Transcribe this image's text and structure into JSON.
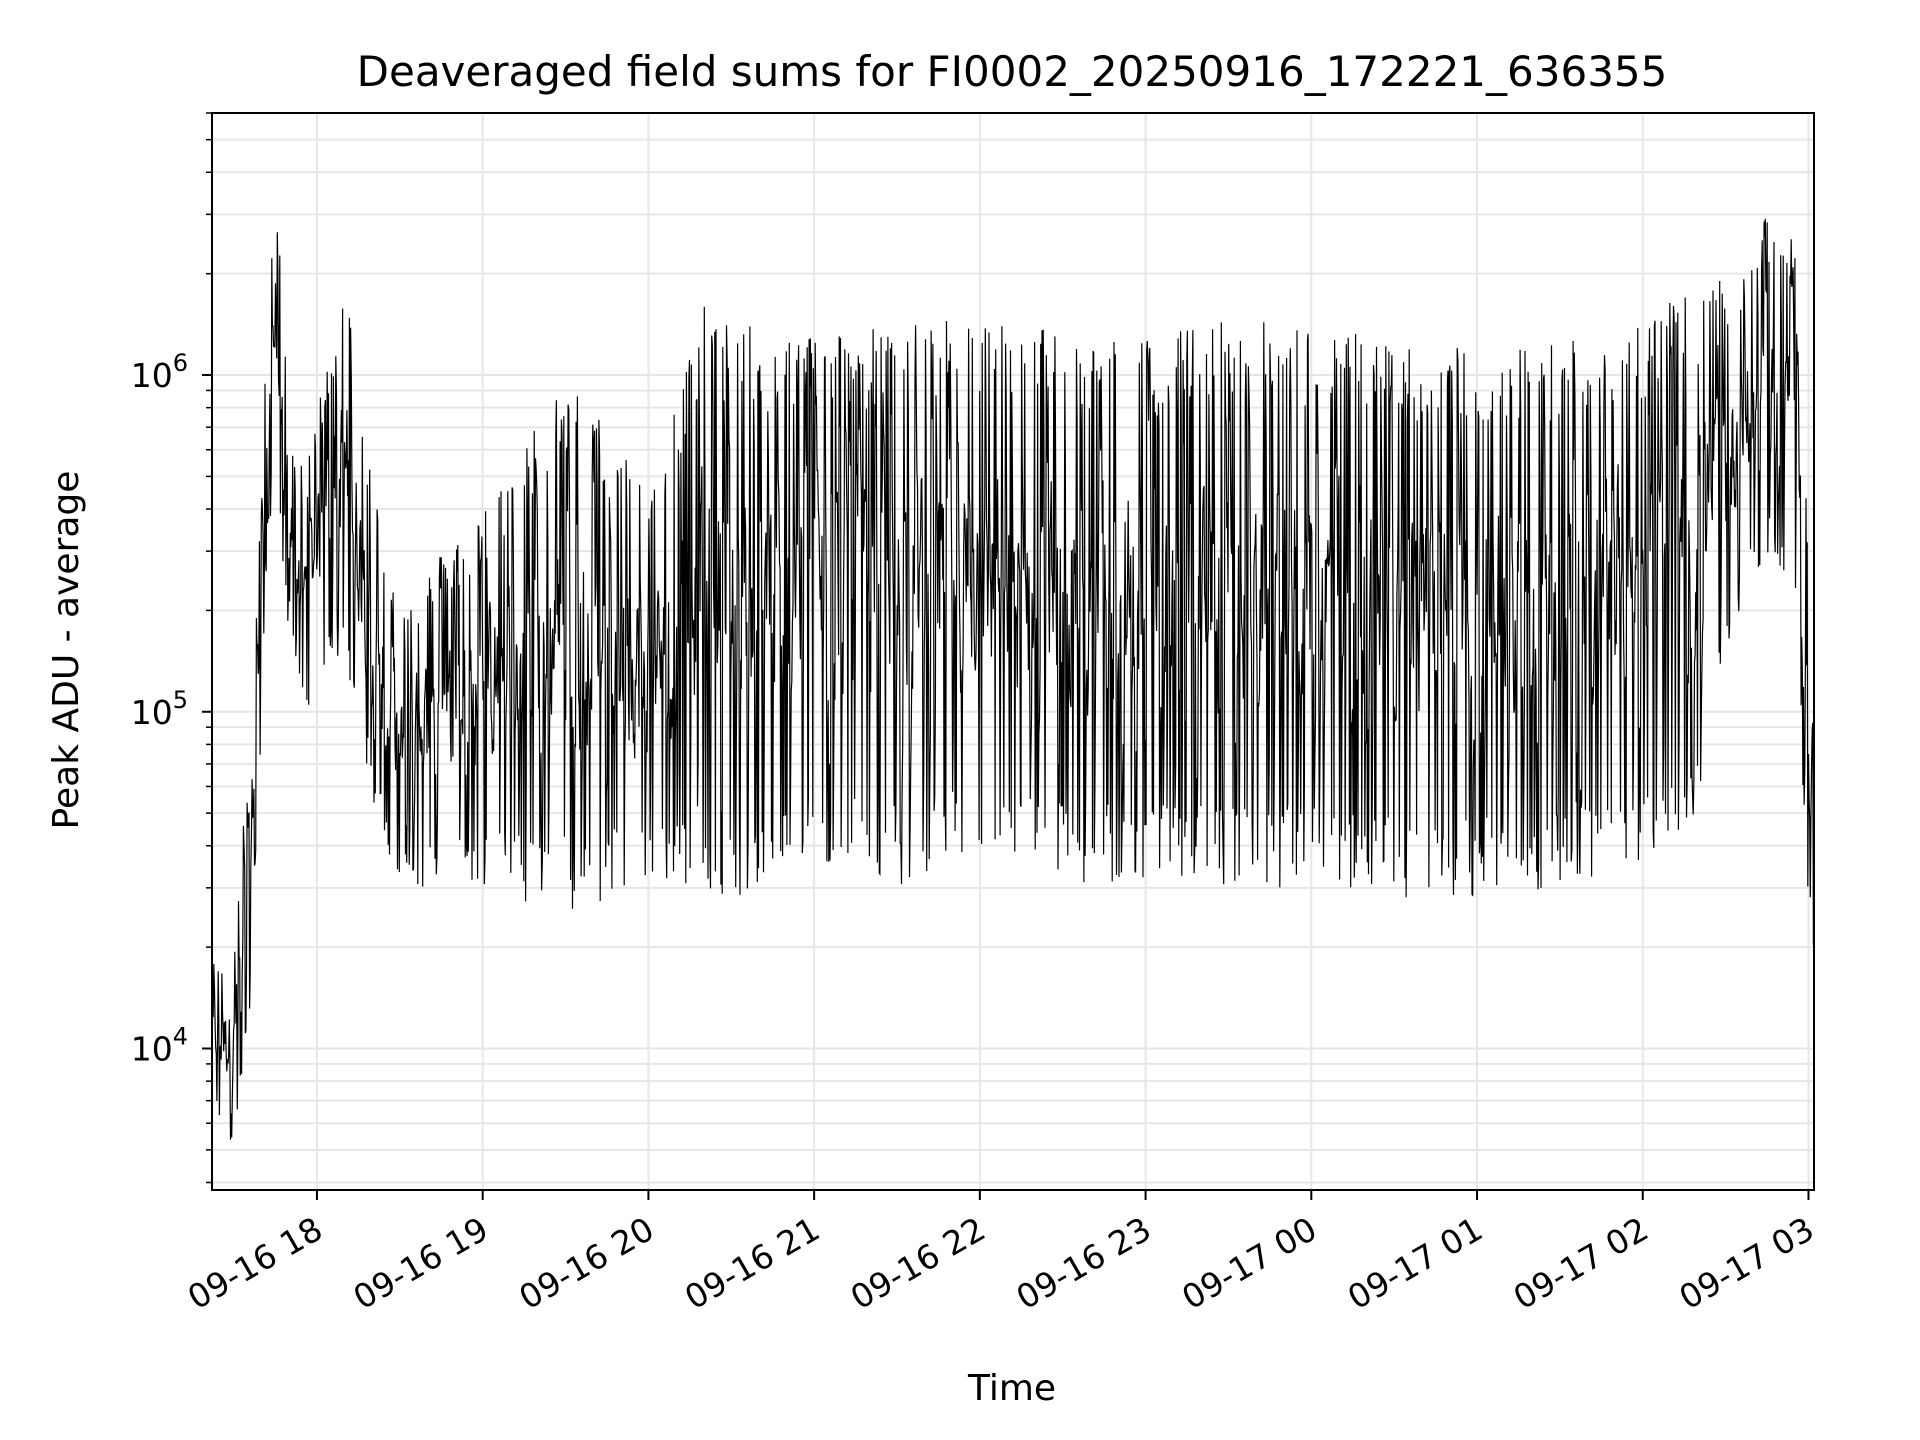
{
  "chart_data": {
    "type": "line",
    "title": "Deaveraged field sums for FI0002_20250916_172221_636355",
    "xlabel": "Time",
    "ylabel": "Peak ADU - average",
    "y_scale": "log",
    "ylim": [
      3800,
      6000000
    ],
    "xlim": [
      "09-16 17:22",
      "09-17 03:02"
    ],
    "x_ticks": [
      "09-16 18",
      "09-16 19",
      "09-16 20",
      "09-16 21",
      "09-16 22",
      "09-16 23",
      "09-17 00",
      "09-17 01",
      "09-17 02",
      "09-17 03"
    ],
    "y_ticks": [
      {
        "value": 10000,
        "base": "10",
        "exp": "4"
      },
      {
        "value": 100000,
        "base": "10",
        "exp": "5"
      },
      {
        "value": 1000000,
        "base": "10",
        "exp": "6"
      }
    ],
    "grid": true,
    "line_color": "#000000",
    "grid_color": "#e6e6e6",
    "series": [
      {
        "envelope": {
          "time": [
            "09-16 17:22",
            "09-16 17:30",
            "09-16 17:35",
            "09-16 17:39",
            "09-16 17:42",
            "09-16 17:45",
            "09-16 17:48",
            "09-16 17:52",
            "09-16 17:56",
            "09-16 18:00",
            "09-16 18:10",
            "09-16 18:20",
            "09-16 18:30",
            "09-16 18:45",
            "09-16 19:00",
            "09-16 19:30",
            "09-16 20:00",
            "09-16 20:20",
            "09-16 20:30",
            "09-16 20:45",
            "09-16 21:00",
            "09-16 21:30",
            "09-16 22:00",
            "09-16 22:30",
            "09-16 23:00",
            "09-16 23:30",
            "09-17 00:00",
            "09-17 00:30",
            "09-17 01:00",
            "09-17 01:30",
            "09-17 02:00",
            "09-17 02:20",
            "09-17 02:35",
            "09-17 02:45",
            "09-17 02:55",
            "09-17 03:00",
            "09-17 03:02"
          ],
          "high": [
            18000,
            20000,
            70000,
            300000,
            1500000,
            4000000,
            1400000,
            600000,
            500000,
            800000,
            2000000,
            500000,
            200000,
            300000,
            400000,
            1000000,
            500000,
            1600000,
            1500000,
            1300000,
            1400000,
            1400000,
            1500000,
            1400000,
            1300000,
            1500000,
            1400000,
            1300000,
            1200000,
            1300000,
            1500000,
            1800000,
            2000000,
            3000000,
            2500000,
            300000,
            150000
          ],
          "low": [
            6500,
            5000,
            10000,
            60000,
            300000,
            500000,
            200000,
            150000,
            100000,
            120000,
            150000,
            50000,
            30000,
            30000,
            30000,
            25000,
            30000,
            30000,
            28000,
            28000,
            35000,
            30000,
            35000,
            30000,
            30000,
            30000,
            30000,
            28000,
            28000,
            30000,
            35000,
            50000,
            200000,
            300000,
            200000,
            25000,
            18000
          ]
        }
      }
    ]
  }
}
